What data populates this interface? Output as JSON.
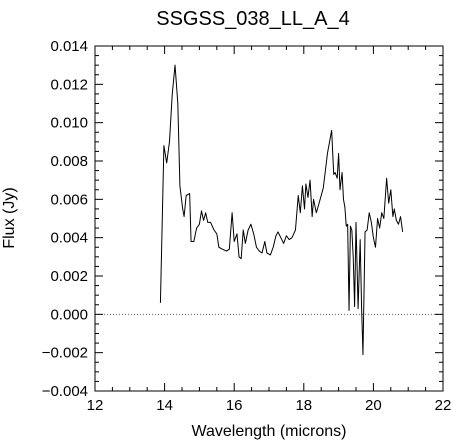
{
  "chart_data": {
    "type": "line",
    "title": "SSGSS_038_LL_A_4",
    "xlabel": "Wavelength (microns)",
    "ylabel": "Flux (Jy)",
    "xlim": [
      12,
      22
    ],
    "ylim": [
      -0.004,
      0.014
    ],
    "xticks": [
      12,
      14,
      16,
      18,
      20,
      22
    ],
    "xtick_labels": [
      "12",
      "14",
      "16",
      "18",
      "20",
      "22"
    ],
    "yticks": [
      -0.004,
      -0.002,
      0.0,
      0.002,
      0.004,
      0.006,
      0.008,
      0.01,
      0.012,
      0.014
    ],
    "ytick_labels": [
      "−0.004",
      "−0.002",
      "0.000",
      "0.002",
      "0.004",
      "0.006",
      "0.008",
      "0.010",
      "0.012",
      "0.014"
    ],
    "grid": false,
    "zero_line": {
      "y": 0.0,
      "style": "dotted"
    },
    "series": [
      {
        "points": [
          [
            13.88,
            0.0006
          ],
          [
            13.98,
            0.0088
          ],
          [
            14.06,
            0.0079
          ],
          [
            14.14,
            0.009
          ],
          [
            14.22,
            0.0115
          ],
          [
            14.3,
            0.013
          ],
          [
            14.38,
            0.011
          ],
          [
            14.44,
            0.0067
          ],
          [
            14.52,
            0.0055
          ],
          [
            14.56,
            0.0051
          ],
          [
            14.62,
            0.0062
          ],
          [
            14.72,
            0.0063
          ],
          [
            14.76,
            0.0038
          ],
          [
            14.84,
            0.0038
          ],
          [
            14.92,
            0.0045
          ],
          [
            15.0,
            0.0047
          ],
          [
            15.06,
            0.0054
          ],
          [
            15.12,
            0.0049
          ],
          [
            15.18,
            0.0053
          ],
          [
            15.24,
            0.0048
          ],
          [
            15.32,
            0.0048
          ],
          [
            15.42,
            0.0044
          ],
          [
            15.5,
            0.0042
          ],
          [
            15.56,
            0.0035
          ],
          [
            15.66,
            0.0034
          ],
          [
            15.78,
            0.0033
          ],
          [
            15.86,
            0.0034
          ],
          [
            15.94,
            0.0053
          ],
          [
            16.0,
            0.0038
          ],
          [
            16.08,
            0.0042
          ],
          [
            16.14,
            0.003
          ],
          [
            16.2,
            0.0029
          ],
          [
            16.26,
            0.0044
          ],
          [
            16.32,
            0.0037
          ],
          [
            16.4,
            0.0044
          ],
          [
            16.48,
            0.0047
          ],
          [
            16.56,
            0.0042
          ],
          [
            16.64,
            0.0035
          ],
          [
            16.72,
            0.0033
          ],
          [
            16.8,
            0.0032
          ],
          [
            16.88,
            0.0038
          ],
          [
            16.94,
            0.0032
          ],
          [
            17.04,
            0.0031
          ],
          [
            17.12,
            0.0035
          ],
          [
            17.2,
            0.0041
          ],
          [
            17.26,
            0.0043
          ],
          [
            17.34,
            0.004
          ],
          [
            17.42,
            0.0037
          ],
          [
            17.5,
            0.0041
          ],
          [
            17.58,
            0.0039
          ],
          [
            17.66,
            0.004
          ],
          [
            17.76,
            0.0044
          ],
          [
            17.84,
            0.0062
          ],
          [
            17.9,
            0.0053
          ],
          [
            17.96,
            0.0067
          ],
          [
            18.02,
            0.0055
          ],
          [
            18.06,
            0.0068
          ],
          [
            18.12,
            0.0061
          ],
          [
            18.18,
            0.007
          ],
          [
            18.24,
            0.0051
          ],
          [
            18.28,
            0.006
          ],
          [
            18.36,
            0.0053
          ],
          [
            18.44,
            0.0058
          ],
          [
            18.5,
            0.0062
          ],
          [
            18.56,
            0.0066
          ],
          [
            18.62,
            0.0075
          ],
          [
            18.68,
            0.0084
          ],
          [
            18.74,
            0.009
          ],
          [
            18.8,
            0.0096
          ],
          [
            18.86,
            0.0073
          ],
          [
            18.9,
            0.0074
          ],
          [
            18.96,
            0.0071
          ],
          [
            19.0,
            0.0084
          ],
          [
            19.04,
            0.0065
          ],
          [
            19.1,
            0.0074
          ],
          [
            19.14,
            0.006
          ],
          [
            19.18,
            0.0056
          ],
          [
            19.22,
            0.0046
          ],
          [
            19.26,
            0.0047
          ],
          [
            19.3,
            0.0002
          ],
          [
            19.34,
            0.0046
          ],
          [
            19.38,
            0.0044
          ],
          [
            19.42,
            0.003
          ],
          [
            19.46,
            0.0004
          ],
          [
            19.5,
            0.0048
          ],
          [
            19.56,
            0.0003
          ],
          [
            19.62,
            0.0039
          ],
          [
            19.66,
            0.0004
          ],
          [
            19.7,
            -0.0021
          ],
          [
            19.76,
            0.0043
          ],
          [
            19.82,
            0.0044
          ],
          [
            19.88,
            0.0053
          ],
          [
            19.94,
            0.0048
          ],
          [
            20.0,
            0.004
          ],
          [
            20.06,
            0.0035
          ],
          [
            20.12,
            0.005
          ],
          [
            20.18,
            0.0045
          ],
          [
            20.24,
            0.0053
          ],
          [
            20.3,
            0.005
          ],
          [
            20.38,
            0.0071
          ],
          [
            20.44,
            0.0058
          ],
          [
            20.5,
            0.0065
          ],
          [
            20.56,
            0.0051
          ],
          [
            20.6,
            0.0055
          ],
          [
            20.66,
            0.0049
          ],
          [
            20.72,
            0.0047
          ],
          [
            20.78,
            0.0051
          ],
          [
            20.84,
            0.0043
          ]
        ]
      }
    ]
  }
}
